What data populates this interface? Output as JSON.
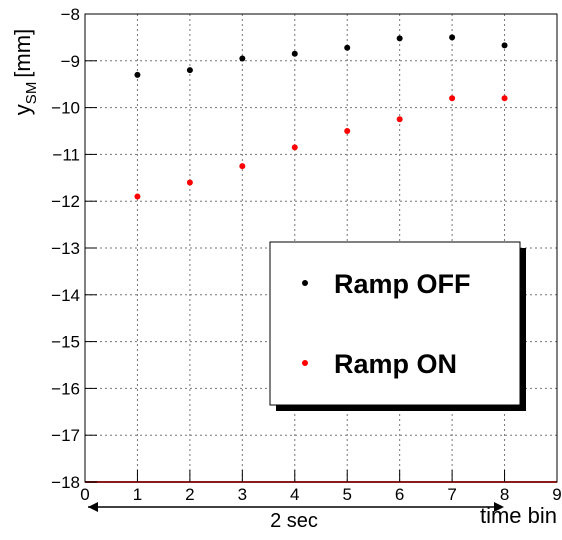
{
  "chart_data": {
    "type": "scatter",
    "y_label": {
      "main": "y",
      "sub": "SM",
      "unit": "[mm]"
    },
    "x_label": "time bin",
    "annotation": "2 sec",
    "x": [
      1,
      2,
      3,
      4,
      5,
      6,
      7,
      8
    ],
    "series": [
      {
        "name": "Ramp OFF",
        "color": "#000000",
        "values": [
          -9.3,
          -9.2,
          -8.95,
          -8.85,
          -8.72,
          -8.52,
          -8.5,
          -8.67
        ]
      },
      {
        "name": "Ramp ON",
        "color": "#ff0000",
        "values": [
          -11.9,
          -11.6,
          -11.25,
          -10.85,
          -10.5,
          -10.25,
          -9.8,
          -9.8
        ]
      }
    ],
    "xlim": [
      0,
      9
    ],
    "xticks": [
      0,
      1,
      2,
      3,
      4,
      5,
      6,
      7,
      8,
      9
    ],
    "ylim": [
      -18,
      -8
    ],
    "yticks": [
      -18,
      -17,
      -16,
      -15,
      -14,
      -13,
      -12,
      -11,
      -10,
      -9,
      -8
    ],
    "grid": true,
    "legend": "lower right"
  }
}
